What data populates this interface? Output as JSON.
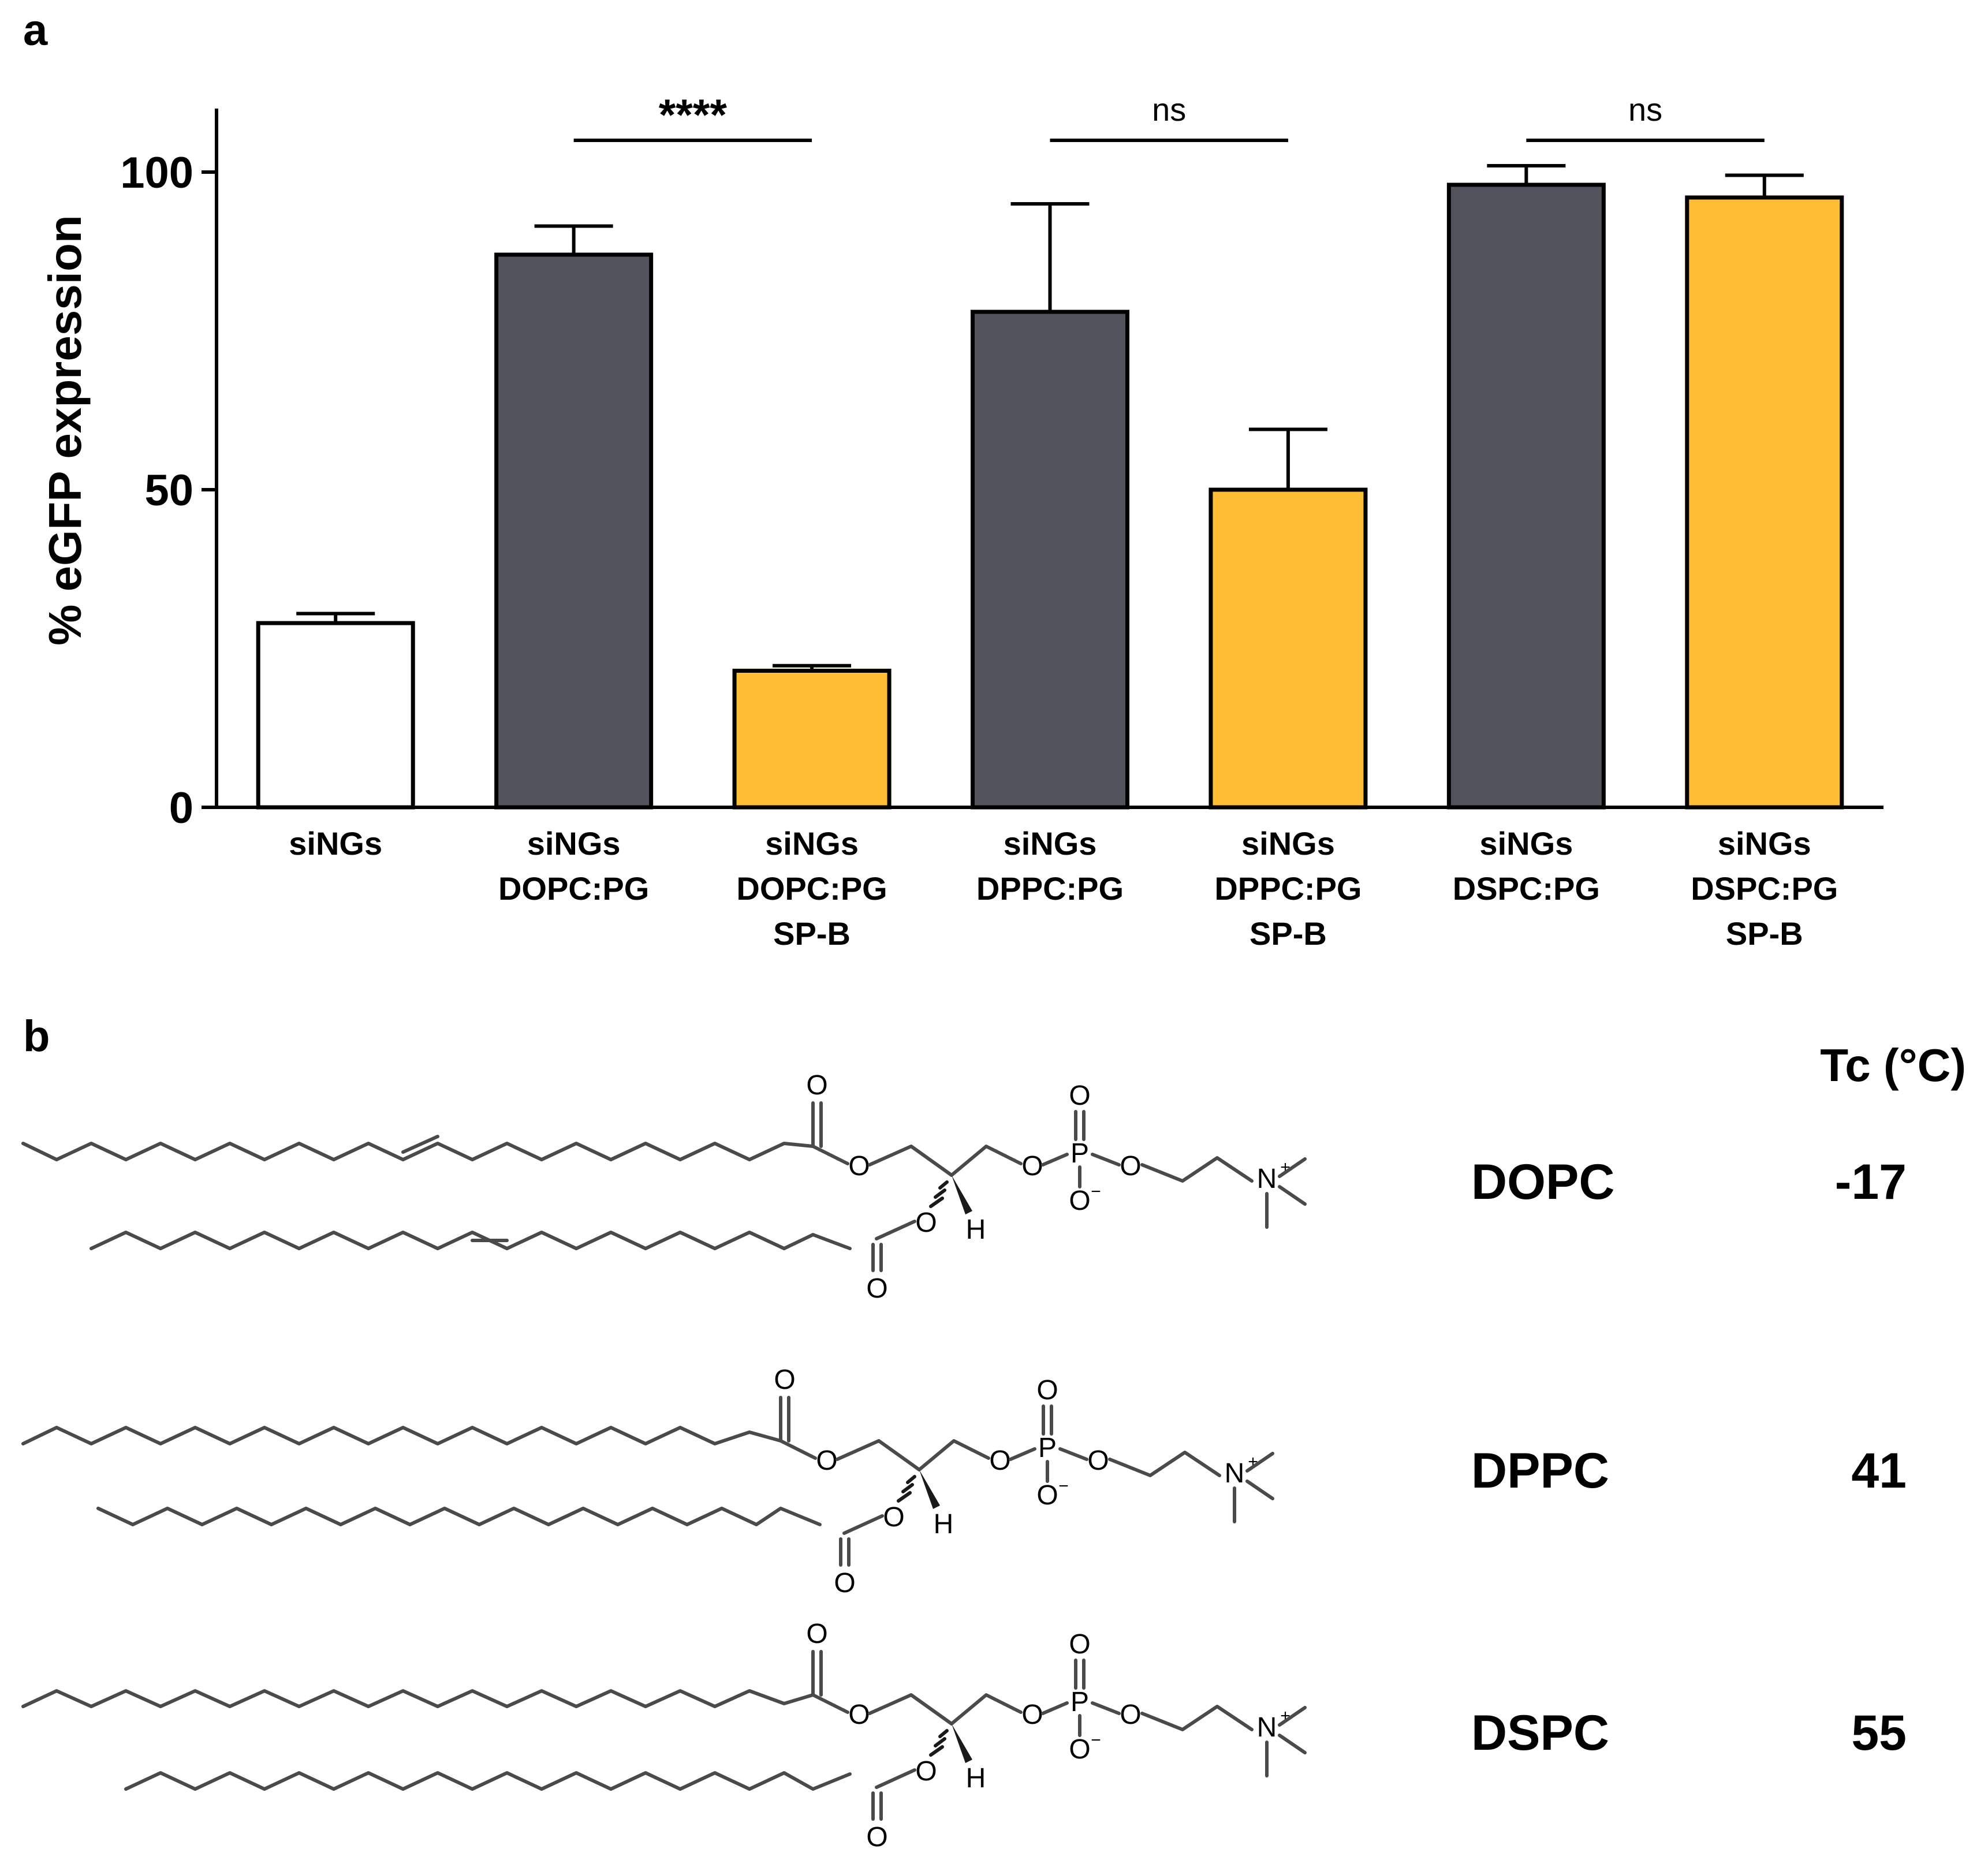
{
  "panel_a": {
    "letter": "a",
    "chart_data": {
      "type": "bar",
      "title": "",
      "xlabel": "",
      "ylabel": "% eGFP expression",
      "ylim": [
        0,
        110
      ],
      "yticks": [
        0,
        50,
        100
      ],
      "ytick_labels": [
        "0",
        "50",
        "100"
      ],
      "categories": [
        [
          "siNGs"
        ],
        [
          "siNGs",
          "DOPC:PG"
        ],
        [
          "siNGs",
          "DOPC:PG",
          "SP-B"
        ],
        [
          "siNGs",
          "DPPC:PG"
        ],
        [
          "siNGs",
          "DPPC:PG",
          "SP-B"
        ],
        [
          "siNGs",
          "DSPC:PG"
        ],
        [
          "siNGs",
          "DSPC:PG",
          "SP-B"
        ]
      ],
      "values": [
        29,
        87,
        21.5,
        78,
        50,
        98,
        96
      ],
      "errors": [
        1.5,
        4.5,
        0.8,
        17,
        9.5,
        3,
        3.5
      ],
      "bar_colors": [
        "#ffffff",
        "#53535e",
        "#fdbd35",
        "#53535e",
        "#fdbd35",
        "#53535e",
        "#fdbd35"
      ],
      "significance": [
        {
          "from": 1,
          "to": 2,
          "label": "****",
          "y": 105
        },
        {
          "from": 3,
          "to": 4,
          "label": "ns",
          "y": 105
        },
        {
          "from": 5,
          "to": 6,
          "label": "ns",
          "y": 105
        }
      ]
    }
  },
  "panel_b": {
    "letter": "b",
    "tc_header": "Tc (°C)",
    "lipids": [
      {
        "name": "DOPC",
        "tc": "-17"
      },
      {
        "name": "DPPC",
        "tc": "41"
      },
      {
        "name": "DSPC",
        "tc": "55"
      }
    ],
    "atoms": {
      "oxygen": "O",
      "phosphorus": "P",
      "nitrogen": "N",
      "hydrogen": "H",
      "plus": "+",
      "minus": "−"
    }
  }
}
